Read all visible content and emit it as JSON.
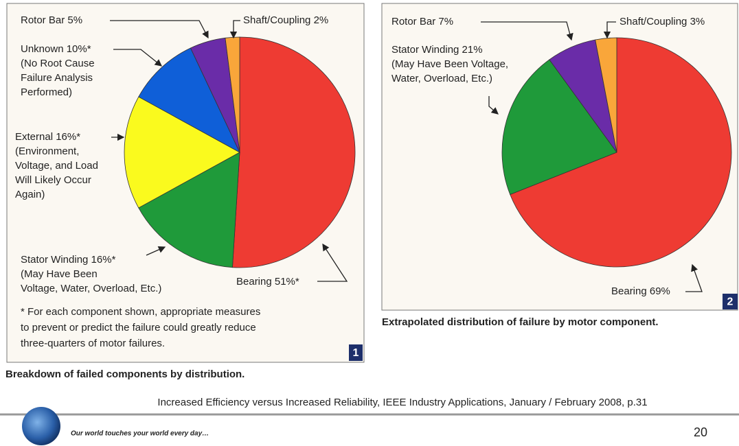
{
  "chart_data": [
    {
      "type": "pie",
      "value_labels": [
        "Bearing 51%*",
        "Stator Winding 16%*",
        "External 16%*",
        "Unknown 10%*",
        "Rotor Bar 5%",
        "Shaft/Coupling 2%"
      ],
      "values": [
        51,
        16,
        16,
        10,
        5,
        2
      ],
      "notes": [
        [],
        [
          "(May Have Been",
          "Voltage, Water, Overload, Etc.)"
        ],
        [
          "(Environment,",
          "Voltage, and Load",
          "Will Likely Occur",
          "Again)"
        ],
        [
          "(No Root Cause",
          "Failure Analysis",
          "Performed)"
        ],
        [],
        []
      ],
      "colors": [
        "#ee3b33",
        "#1f9a3a",
        "#fafa1e",
        "#0f5fd8",
        "#6a2ca8",
        "#f9a63a"
      ],
      "footnote": [
        "* For each component shown, appropriate measures",
        "to prevent or predict the failure could greatly reduce",
        "three-quarters of motor failures."
      ],
      "figure_number": "1",
      "caption": "Breakdown of failed components by distribution."
    },
    {
      "type": "pie",
      "value_labels": [
        "Bearing 69%",
        "Stator Winding 21%",
        "Rotor Bar 7%",
        "Shaft/Coupling 3%"
      ],
      "values": [
        69,
        21,
        7,
        3
      ],
      "notes": [
        [],
        [
          "(May Have Been Voltage,",
          "Water, Overload, Etc.)"
        ],
        [],
        []
      ],
      "colors": [
        "#ee3b33",
        "#1f9a3a",
        "#6a2ca8",
        "#f9a63a"
      ],
      "figure_number": "2",
      "caption": "Extrapolated distribution of failure by motor component."
    }
  ],
  "source": "Increased Efficiency versus Increased Reliability, IEEE Industry Applications, January / February 2008, p.31",
  "tagline": "Our world touches your world every day…",
  "page_number": "20"
}
